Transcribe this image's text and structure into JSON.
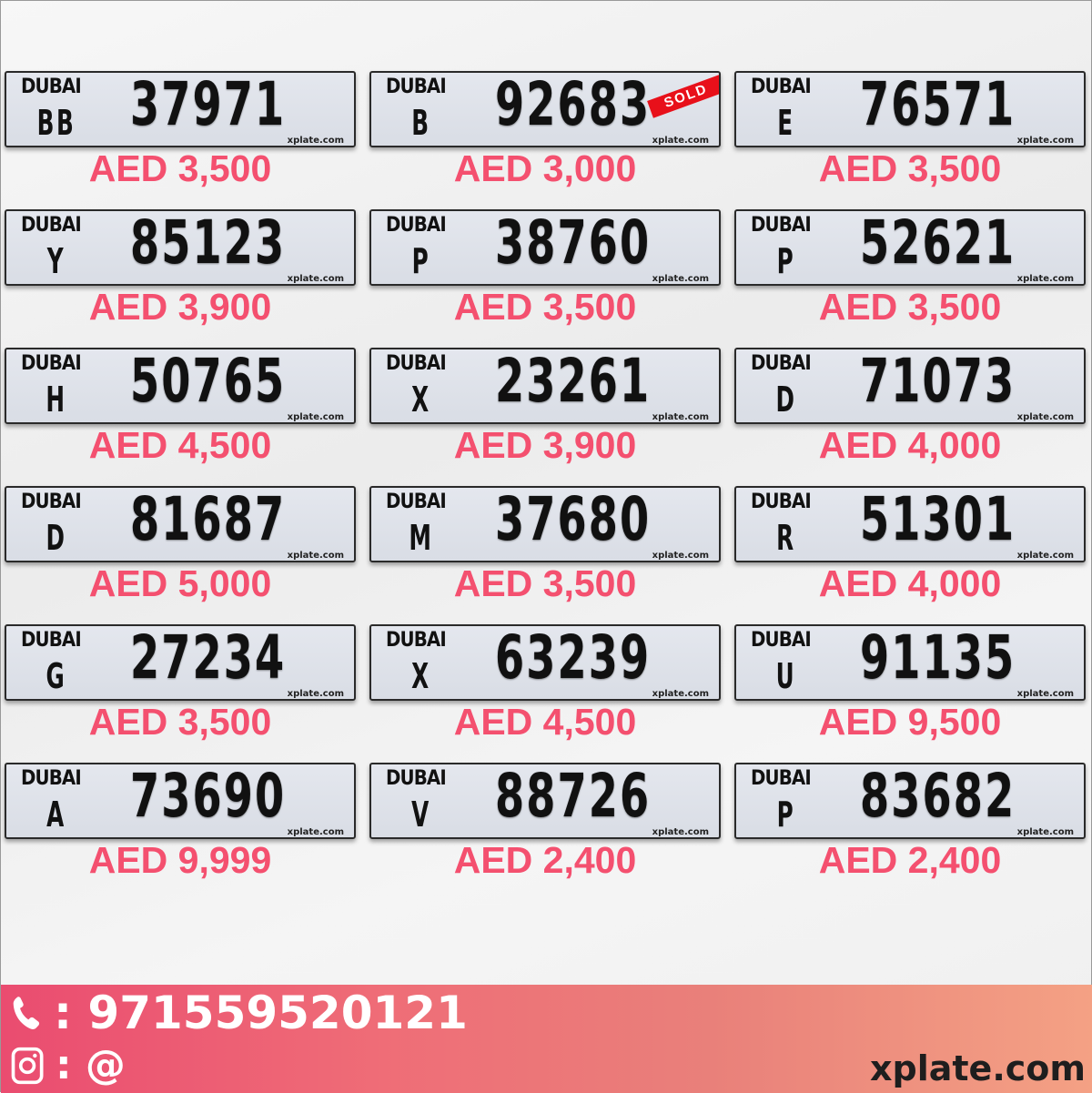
{
  "plates": [
    {
      "emirate": "DUBAI",
      "code": "BB",
      "number": "37971",
      "price": "AED 3,500",
      "watermark": "xplate.com",
      "sold": false
    },
    {
      "emirate": "DUBAI",
      "code": "B",
      "number": "92683",
      "price": "AED 3,000",
      "watermark": "xplate.com",
      "sold": true,
      "sold_label": "SOLD"
    },
    {
      "emirate": "DUBAI",
      "code": "E",
      "number": "76571",
      "price": "AED 3,500",
      "watermark": "xplate.com",
      "sold": false
    },
    {
      "emirate": "DUBAI",
      "code": "Y",
      "number": "85123",
      "price": "AED 3,900",
      "watermark": "xplate.com",
      "sold": false
    },
    {
      "emirate": "DUBAI",
      "code": "P",
      "number": "38760",
      "price": "AED 3,500",
      "watermark": "xplate.com",
      "sold": false
    },
    {
      "emirate": "DUBAI",
      "code": "P",
      "number": "52621",
      "price": "AED 3,500",
      "watermark": "xplate.com",
      "sold": false
    },
    {
      "emirate": "DUBAI",
      "code": "H",
      "number": "50765",
      "price": "AED 4,500",
      "watermark": "xplate.com",
      "sold": false
    },
    {
      "emirate": "DUBAI",
      "code": "X",
      "number": "23261",
      "price": "AED 3,900",
      "watermark": "xplate.com",
      "sold": false
    },
    {
      "emirate": "DUBAI",
      "code": "D",
      "number": "71073",
      "price": "AED 4,000",
      "watermark": "xplate.com",
      "sold": false
    },
    {
      "emirate": "DUBAI",
      "code": "D",
      "number": "81687",
      "price": "AED 5,000",
      "watermark": "xplate.com",
      "sold": false
    },
    {
      "emirate": "DUBAI",
      "code": "M",
      "number": "37680",
      "price": "AED 3,500",
      "watermark": "xplate.com",
      "sold": false
    },
    {
      "emirate": "DUBAI",
      "code": "R",
      "number": "51301",
      "price": "AED 4,000",
      "watermark": "xplate.com",
      "sold": false
    },
    {
      "emirate": "DUBAI",
      "code": "G",
      "number": "27234",
      "price": "AED 3,500",
      "watermark": "xplate.com",
      "sold": false
    },
    {
      "emirate": "DUBAI",
      "code": "X",
      "number": "63239",
      "price": "AED 4,500",
      "watermark": "xplate.com",
      "sold": false
    },
    {
      "emirate": "DUBAI",
      "code": "U",
      "number": "91135",
      "price": "AED 9,500",
      "watermark": "xplate.com",
      "sold": false
    },
    {
      "emirate": "DUBAI",
      "code": "A",
      "number": "73690",
      "price": "AED 9,999",
      "watermark": "xplate.com",
      "sold": false
    },
    {
      "emirate": "DUBAI",
      "code": "V",
      "number": "88726",
      "price": "AED 2,400",
      "watermark": "xplate.com",
      "sold": false
    },
    {
      "emirate": "DUBAI",
      "code": "P",
      "number": "83682",
      "price": "AED 2,400",
      "watermark": "xplate.com",
      "sold": false
    }
  ],
  "footer": {
    "phone_icon": "phone-icon",
    "phone": ": 971559520121",
    "instagram_icon": "instagram-icon",
    "instagram": ": @",
    "site": "xplate.com"
  },
  "colors": {
    "price": "#f4506f",
    "sold": "#e8101a"
  }
}
